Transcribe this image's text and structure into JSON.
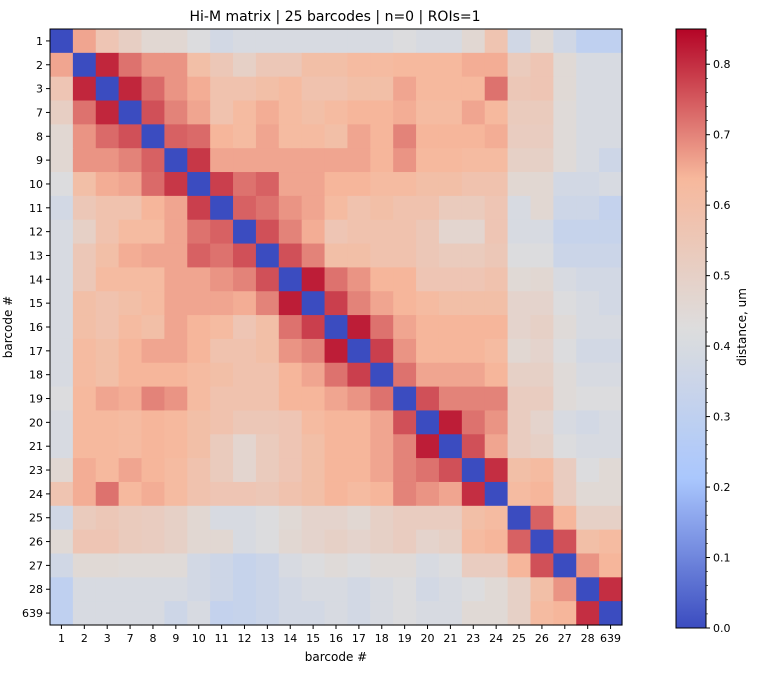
{
  "chart_data": {
    "type": "heatmap",
    "title": "Hi-M matrix | 25 barcodes | n=0 | ROIs=1",
    "xlabel": "barcode #",
    "ylabel": "barcode #",
    "colorbar": {
      "label": "distance, um",
      "range": [
        0.0,
        0.85
      ],
      "ticks": [
        0.0,
        0.1,
        0.2,
        0.3,
        0.4,
        0.5,
        0.6,
        0.7,
        0.8
      ],
      "tick_labels": [
        "0.0",
        "0.1",
        "0.2",
        "0.3",
        "0.4",
        "0.5",
        "0.6",
        "0.7",
        "0.8"
      ],
      "colormap": "coolwarm_r",
      "colormap_stops": [
        "#b40426",
        "#f7b89c",
        "#dddddd",
        "#aac7fd",
        "#3b4cc0"
      ]
    },
    "labels": [
      "1",
      "2",
      "3",
      "7",
      "8",
      "9",
      "10",
      "11",
      "12",
      "13",
      "14",
      "15",
      "16",
      "17",
      "18",
      "19",
      "20",
      "21",
      "23",
      "24",
      "25",
      "26",
      "27",
      "28",
      "639"
    ],
    "matrix": [
      [
        0.0,
        0.66,
        0.56,
        0.51,
        0.46,
        0.46,
        0.42,
        0.38,
        0.4,
        0.4,
        0.4,
        0.4,
        0.4,
        0.4,
        0.4,
        0.42,
        0.4,
        0.4,
        0.46,
        0.57,
        0.37,
        0.45,
        0.37,
        0.3,
        0.3
      ],
      [
        0.66,
        0.0,
        0.81,
        0.72,
        0.68,
        0.68,
        0.6,
        0.55,
        0.5,
        0.55,
        0.55,
        0.6,
        0.6,
        0.62,
        0.62,
        0.63,
        0.63,
        0.63,
        0.65,
        0.65,
        0.53,
        0.56,
        0.45,
        0.4,
        0.4
      ],
      [
        0.56,
        0.81,
        0.0,
        0.81,
        0.73,
        0.68,
        0.65,
        0.58,
        0.58,
        0.6,
        0.62,
        0.58,
        0.58,
        0.6,
        0.6,
        0.66,
        0.63,
        0.63,
        0.63,
        0.72,
        0.55,
        0.56,
        0.45,
        0.4,
        0.4
      ],
      [
        0.51,
        0.72,
        0.81,
        0.0,
        0.76,
        0.7,
        0.66,
        0.58,
        0.62,
        0.65,
        0.62,
        0.6,
        0.62,
        0.64,
        0.64,
        0.65,
        0.62,
        0.62,
        0.66,
        0.63,
        0.53,
        0.53,
        0.44,
        0.4,
        0.4
      ],
      [
        0.46,
        0.68,
        0.73,
        0.76,
        0.0,
        0.74,
        0.73,
        0.64,
        0.62,
        0.66,
        0.62,
        0.62,
        0.6,
        0.66,
        0.64,
        0.7,
        0.64,
        0.64,
        0.64,
        0.65,
        0.52,
        0.52,
        0.44,
        0.4,
        0.4
      ],
      [
        0.46,
        0.68,
        0.68,
        0.7,
        0.74,
        0.0,
        0.79,
        0.66,
        0.66,
        0.66,
        0.66,
        0.66,
        0.66,
        0.66,
        0.64,
        0.68,
        0.63,
        0.63,
        0.62,
        0.62,
        0.5,
        0.5,
        0.44,
        0.4,
        0.36
      ],
      [
        0.42,
        0.6,
        0.65,
        0.66,
        0.73,
        0.79,
        0.0,
        0.78,
        0.72,
        0.74,
        0.66,
        0.66,
        0.64,
        0.64,
        0.62,
        0.62,
        0.6,
        0.6,
        0.58,
        0.58,
        0.46,
        0.46,
        0.38,
        0.38,
        0.4
      ],
      [
        0.38,
        0.55,
        0.58,
        0.58,
        0.64,
        0.66,
        0.78,
        0.0,
        0.74,
        0.72,
        0.68,
        0.66,
        0.62,
        0.58,
        0.6,
        0.58,
        0.58,
        0.53,
        0.53,
        0.56,
        0.4,
        0.46,
        0.36,
        0.36,
        0.32
      ],
      [
        0.4,
        0.5,
        0.58,
        0.62,
        0.62,
        0.66,
        0.72,
        0.74,
        0.0,
        0.76,
        0.7,
        0.65,
        0.56,
        0.58,
        0.58,
        0.58,
        0.55,
        0.47,
        0.47,
        0.56,
        0.4,
        0.4,
        0.33,
        0.33,
        0.33
      ],
      [
        0.4,
        0.55,
        0.6,
        0.65,
        0.66,
        0.66,
        0.74,
        0.72,
        0.76,
        0.0,
        0.76,
        0.7,
        0.6,
        0.6,
        0.58,
        0.58,
        0.55,
        0.53,
        0.53,
        0.55,
        0.42,
        0.42,
        0.35,
        0.35,
        0.35
      ],
      [
        0.4,
        0.55,
        0.62,
        0.62,
        0.62,
        0.66,
        0.66,
        0.68,
        0.7,
        0.76,
        0.0,
        0.82,
        0.72,
        0.68,
        0.64,
        0.64,
        0.56,
        0.56,
        0.56,
        0.58,
        0.45,
        0.46,
        0.4,
        0.38,
        0.38
      ],
      [
        0.4,
        0.6,
        0.58,
        0.6,
        0.62,
        0.66,
        0.66,
        0.66,
        0.65,
        0.7,
        0.82,
        0.0,
        0.78,
        0.7,
        0.66,
        0.64,
        0.62,
        0.6,
        0.6,
        0.6,
        0.48,
        0.48,
        0.42,
        0.4,
        0.38
      ],
      [
        0.4,
        0.6,
        0.58,
        0.62,
        0.6,
        0.66,
        0.64,
        0.62,
        0.56,
        0.6,
        0.72,
        0.78,
        0.0,
        0.82,
        0.72,
        0.66,
        0.64,
        0.64,
        0.64,
        0.64,
        0.48,
        0.5,
        0.44,
        0.4,
        0.4
      ],
      [
        0.4,
        0.62,
        0.6,
        0.64,
        0.66,
        0.66,
        0.64,
        0.58,
        0.58,
        0.6,
        0.68,
        0.7,
        0.82,
        0.0,
        0.78,
        0.68,
        0.64,
        0.64,
        0.64,
        0.62,
        0.46,
        0.48,
        0.42,
        0.38,
        0.38
      ],
      [
        0.4,
        0.62,
        0.6,
        0.64,
        0.64,
        0.64,
        0.62,
        0.6,
        0.58,
        0.58,
        0.64,
        0.66,
        0.72,
        0.78,
        0.0,
        0.72,
        0.66,
        0.66,
        0.66,
        0.64,
        0.5,
        0.5,
        0.44,
        0.4,
        0.4
      ],
      [
        0.42,
        0.63,
        0.66,
        0.65,
        0.7,
        0.68,
        0.62,
        0.58,
        0.58,
        0.58,
        0.64,
        0.64,
        0.66,
        0.68,
        0.72,
        0.0,
        0.76,
        0.7,
        0.7,
        0.7,
        0.52,
        0.52,
        0.44,
        0.42,
        0.42
      ],
      [
        0.4,
        0.63,
        0.63,
        0.62,
        0.64,
        0.63,
        0.6,
        0.58,
        0.55,
        0.55,
        0.56,
        0.62,
        0.64,
        0.64,
        0.66,
        0.76,
        0.0,
        0.82,
        0.72,
        0.68,
        0.52,
        0.48,
        0.4,
        0.38,
        0.4
      ],
      [
        0.4,
        0.63,
        0.63,
        0.62,
        0.64,
        0.63,
        0.6,
        0.53,
        0.47,
        0.53,
        0.56,
        0.6,
        0.64,
        0.64,
        0.66,
        0.7,
        0.82,
        0.0,
        0.76,
        0.66,
        0.52,
        0.5,
        0.42,
        0.4,
        0.4
      ],
      [
        0.46,
        0.65,
        0.63,
        0.66,
        0.64,
        0.62,
        0.58,
        0.53,
        0.47,
        0.53,
        0.56,
        0.6,
        0.64,
        0.64,
        0.66,
        0.7,
        0.72,
        0.76,
        0.0,
        0.8,
        0.6,
        0.62,
        0.52,
        0.42,
        0.45
      ],
      [
        0.57,
        0.65,
        0.72,
        0.63,
        0.65,
        0.62,
        0.58,
        0.56,
        0.56,
        0.55,
        0.58,
        0.6,
        0.64,
        0.62,
        0.64,
        0.7,
        0.68,
        0.66,
        0.8,
        0.0,
        0.62,
        0.64,
        0.52,
        0.45,
        0.45
      ],
      [
        0.37,
        0.53,
        0.55,
        0.53,
        0.52,
        0.5,
        0.46,
        0.4,
        0.4,
        0.42,
        0.45,
        0.48,
        0.48,
        0.46,
        0.5,
        0.52,
        0.52,
        0.52,
        0.6,
        0.62,
        0.0,
        0.74,
        0.64,
        0.5,
        0.5
      ],
      [
        0.45,
        0.56,
        0.56,
        0.53,
        0.52,
        0.5,
        0.46,
        0.46,
        0.4,
        0.42,
        0.46,
        0.48,
        0.5,
        0.48,
        0.5,
        0.52,
        0.48,
        0.5,
        0.62,
        0.64,
        0.74,
        0.0,
        0.76,
        0.6,
        0.62
      ],
      [
        0.37,
        0.45,
        0.45,
        0.44,
        0.44,
        0.44,
        0.38,
        0.36,
        0.33,
        0.35,
        0.4,
        0.42,
        0.44,
        0.42,
        0.44,
        0.44,
        0.4,
        0.42,
        0.52,
        0.52,
        0.64,
        0.76,
        0.0,
        0.68,
        0.64
      ],
      [
        0.3,
        0.4,
        0.4,
        0.4,
        0.4,
        0.4,
        0.38,
        0.36,
        0.33,
        0.35,
        0.38,
        0.4,
        0.4,
        0.38,
        0.4,
        0.42,
        0.38,
        0.4,
        0.42,
        0.45,
        0.5,
        0.6,
        0.68,
        0.0,
        0.8
      ],
      [
        0.3,
        0.4,
        0.4,
        0.4,
        0.4,
        0.36,
        0.4,
        0.32,
        0.33,
        0.35,
        0.38,
        0.38,
        0.4,
        0.38,
        0.4,
        0.42,
        0.4,
        0.4,
        0.45,
        0.45,
        0.5,
        0.62,
        0.64,
        0.8,
        0.0
      ]
    ]
  }
}
